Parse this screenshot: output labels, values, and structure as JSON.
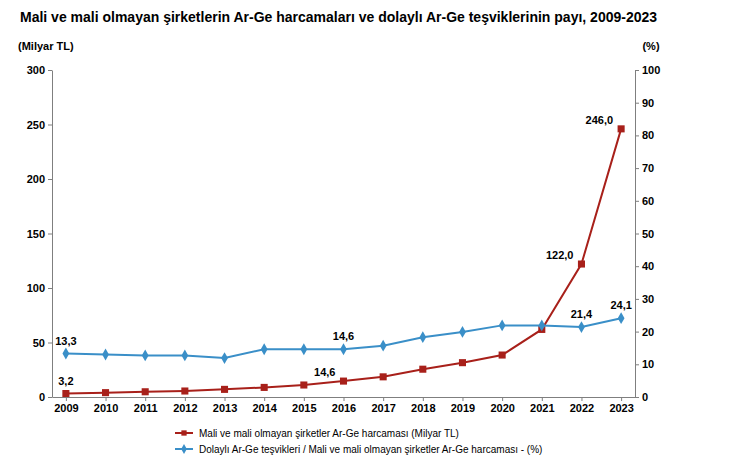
{
  "chart_data": {
    "type": "line",
    "title": "Mali ve mali olmayan şirketlerin Ar-Ge harcamaları ve dolaylı Ar-Ge teşviklerinin payı, 2009-2023",
    "y_label": "(Milyar TL)",
    "y2_label": "(%)",
    "categories": [
      "2009",
      "2010",
      "2011",
      "2012",
      "2013",
      "2014",
      "2015",
      "2016",
      "2017",
      "2018",
      "2019",
      "2020",
      "2021",
      "2022",
      "2023"
    ],
    "ylim": [
      0,
      300
    ],
    "yticks": [
      0,
      50,
      100,
      150,
      200,
      250,
      300
    ],
    "y2lim": [
      0,
      100
    ],
    "y2ticks": [
      0,
      10,
      20,
      30,
      40,
      50,
      60,
      70,
      80,
      90,
      100
    ],
    "grid": false,
    "legend": "bottom",
    "data_labels": true,
    "series": [
      {
        "name": "Mali ve mali olmayan şirketler Ar-Ge harcaması (Milyar TL)",
        "color": "#a8201a",
        "marker": "square",
        "line_style": "solid",
        "values": [
          3.2,
          4.0,
          4.8,
          5.5,
          7.0,
          8.8,
          11.0,
          14.6,
          18.5,
          25.5,
          31.5,
          38.5,
          62.0,
          122.0,
          246.0
        ],
        "value_labels": [
          "3,2",
          null,
          null,
          null,
          null,
          null,
          null,
          "14,6",
          null,
          null,
          null,
          null,
          null,
          "122,0",
          "246,0"
        ]
      },
      {
        "name": "Dolaylı Ar-Ge teşvikleri / Mali ve mali olmayan şirketler Ar-Ge harcaması - (%)",
        "color": "#3a8fc8",
        "marker": "diamond",
        "line_style": "solid",
        "axis": "y2",
        "values": [
          13.3,
          13.0,
          12.7,
          12.7,
          11.9,
          14.6,
          14.6,
          14.6,
          15.7,
          18.3,
          19.9,
          21.9,
          21.9,
          21.4,
          24.1
        ],
        "value_labels": [
          "13,3",
          null,
          null,
          null,
          null,
          null,
          null,
          "14,6",
          null,
          null,
          null,
          null,
          null,
          "21,4",
          "24,1"
        ]
      }
    ]
  }
}
